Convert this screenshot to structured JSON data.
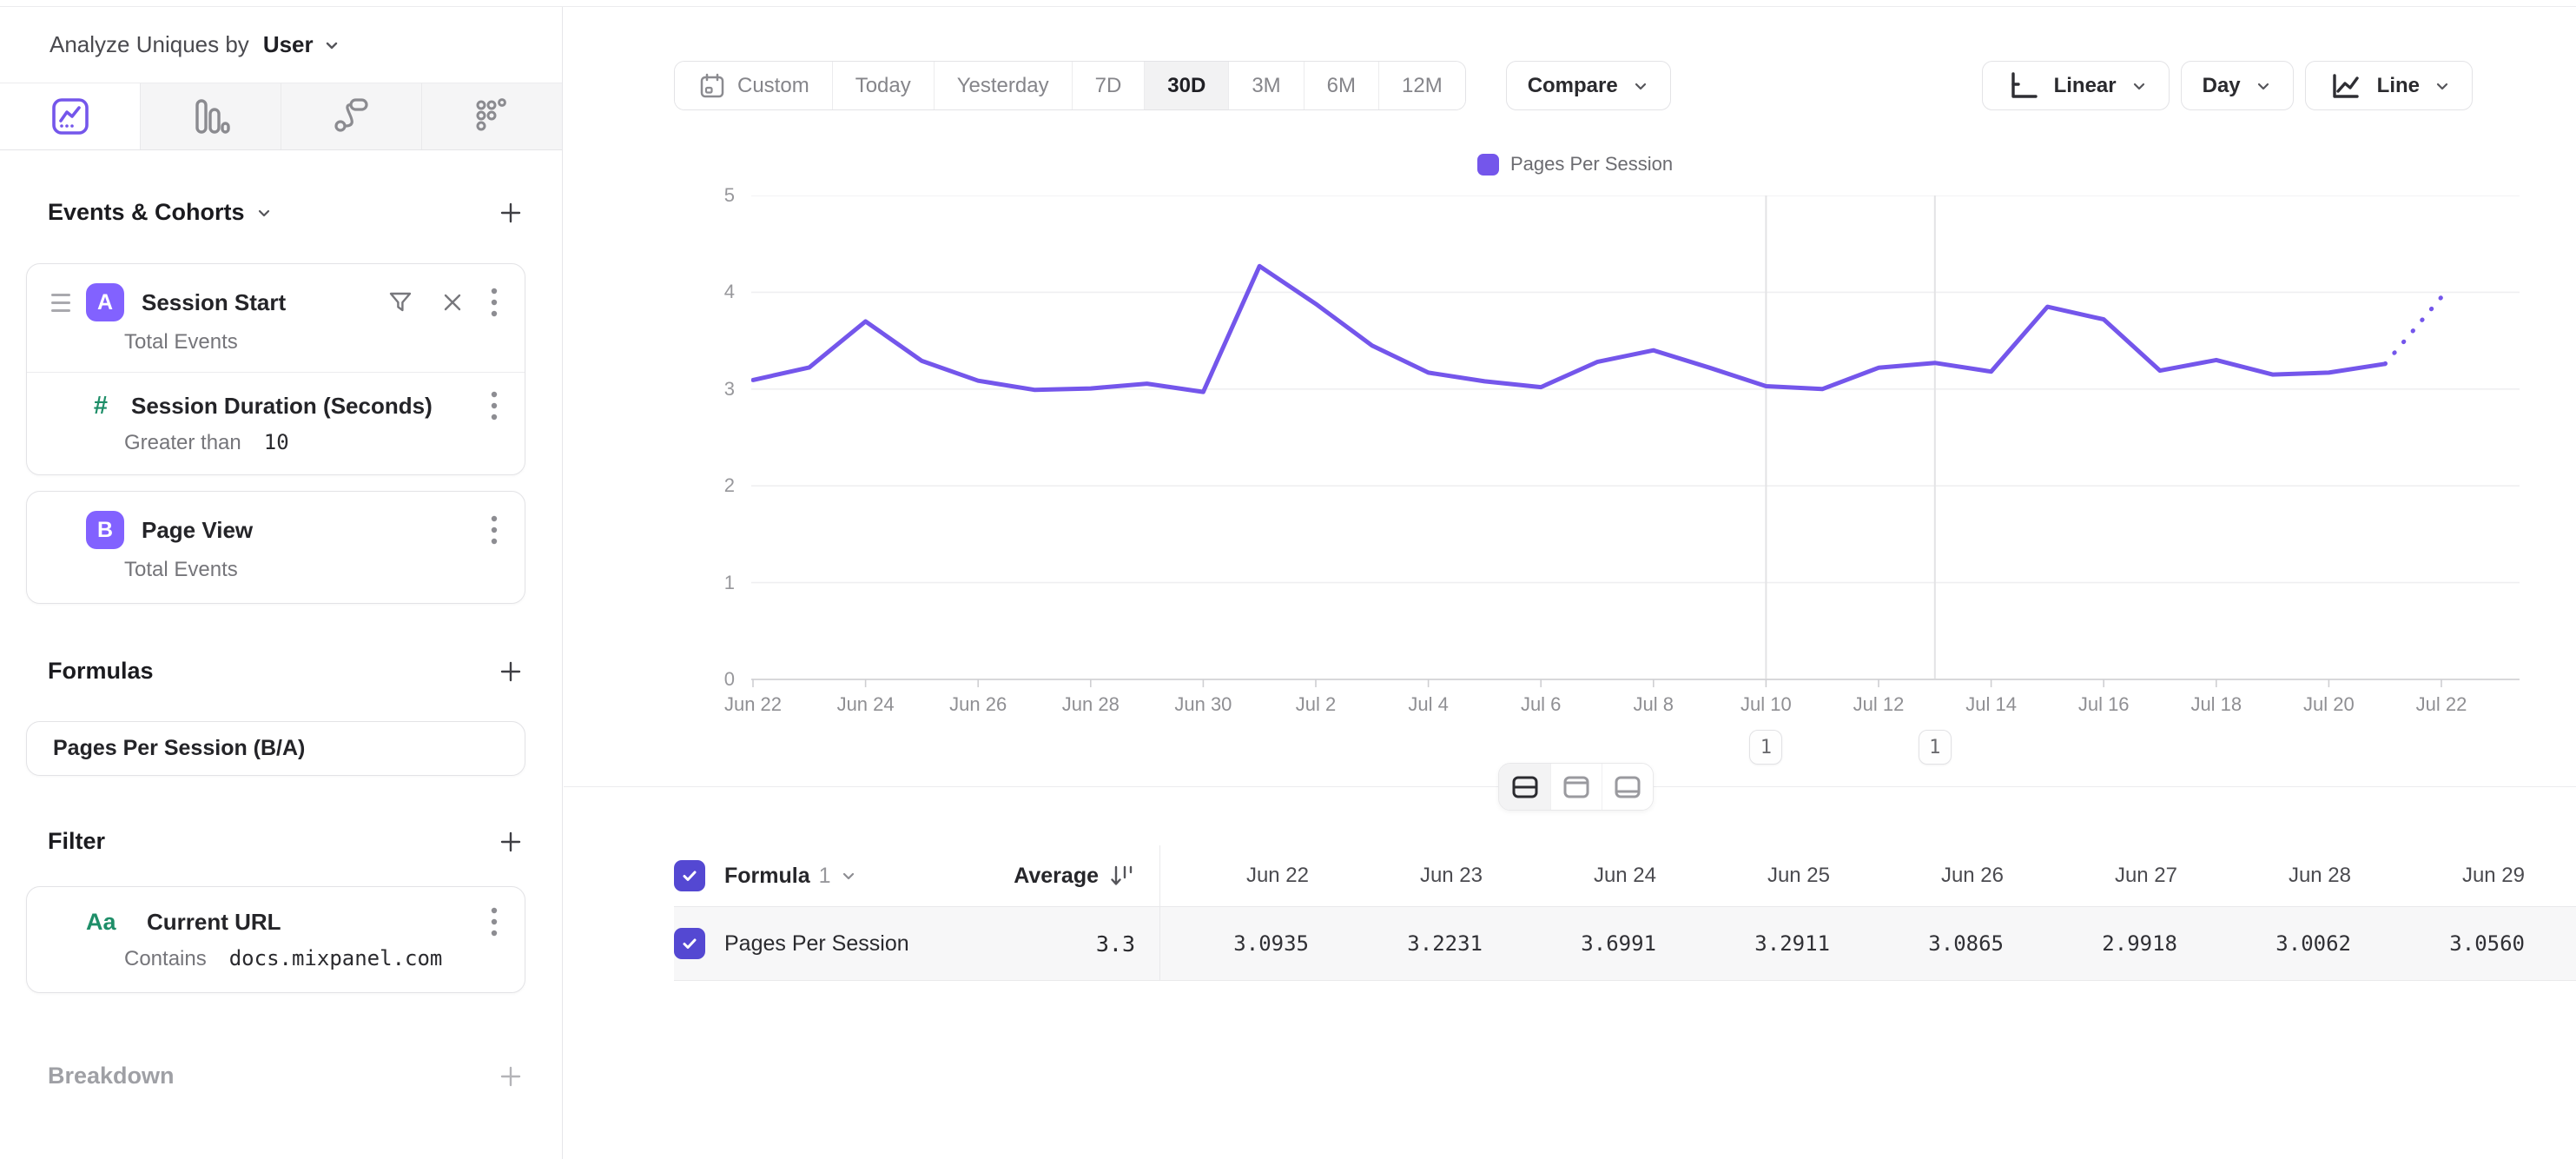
{
  "analyze_bar": {
    "prefix": "Analyze Uniques by",
    "selected": "User"
  },
  "sidebar": {
    "tabs": [
      {
        "name": "insights",
        "active": true
      },
      {
        "name": "funnels",
        "active": false
      },
      {
        "name": "flows",
        "active": false
      },
      {
        "name": "retention",
        "active": false
      }
    ],
    "events_section_title": "Events & Cohorts",
    "events": [
      {
        "letter": "A",
        "name": "Session Start",
        "metric": "Total Events",
        "inline_filter": {
          "property": "Session Duration (Seconds)",
          "operator": "Greater than",
          "value": "10"
        }
      },
      {
        "letter": "B",
        "name": "Page View",
        "metric": "Total Events"
      }
    ],
    "formulas_section_title": "Formulas",
    "formulas": [
      {
        "name": "Pages Per Session (B/A)"
      }
    ],
    "filter_section_title": "Filter",
    "filters": [
      {
        "type_icon": "Aa",
        "property": "Current URL",
        "operator": "Contains",
        "value": "docs.mixpanel.com"
      }
    ],
    "breakdown_section_title": "Breakdown"
  },
  "toolbar": {
    "ranges": [
      "Custom",
      "Today",
      "Yesterday",
      "7D",
      "30D",
      "3M",
      "6M",
      "12M"
    ],
    "active_range": "30D",
    "compare_label": "Compare",
    "scale_label": "Linear",
    "granularity_label": "Day",
    "chart_type_label": "Line"
  },
  "chart_data": {
    "type": "line",
    "legend": [
      {
        "label": "Pages Per Session",
        "color": "#7456eb"
      }
    ],
    "x": [
      "Jun 22",
      "Jun 23",
      "Jun 24",
      "Jun 25",
      "Jun 26",
      "Jun 27",
      "Jun 28",
      "Jun 29",
      "Jun 30",
      "Jul 1",
      "Jul 2",
      "Jul 3",
      "Jul 4",
      "Jul 5",
      "Jul 6",
      "Jul 7",
      "Jul 8",
      "Jul 9",
      "Jul 10",
      "Jul 11",
      "Jul 12",
      "Jul 13",
      "Jul 14",
      "Jul 15",
      "Jul 16",
      "Jul 17",
      "Jul 18",
      "Jul 19",
      "Jul 20",
      "Jul 21",
      "Jul 22"
    ],
    "series": [
      {
        "name": "Pages Per Session",
        "values": [
          3.0935,
          3.2231,
          3.6991,
          3.2911,
          3.0865,
          2.9918,
          3.0062,
          3.056,
          2.97,
          4.27,
          3.88,
          3.45,
          3.17,
          3.08,
          3.02,
          3.28,
          3.4,
          3.22,
          3.03,
          3.0,
          3.22,
          3.27,
          3.18,
          3.85,
          3.72,
          3.19,
          3.3,
          3.15,
          3.17,
          3.26,
          3.95
        ],
        "last_point_projected": true
      }
    ],
    "ylim": [
      0,
      5
    ],
    "yticks": [
      0,
      1,
      2,
      3,
      4,
      5
    ],
    "xtick_labels": [
      "Jun 22",
      "Jun 24",
      "Jun 26",
      "Jun 28",
      "Jun 30",
      "Jul 2",
      "Jul 4",
      "Jul 6",
      "Jul 8",
      "Jul 10",
      "Jul 12",
      "Jul 14",
      "Jul 16",
      "Jul 18",
      "Jul 20",
      "Jul 22"
    ],
    "annotations": [
      {
        "x": "Jul 10",
        "label": "1"
      },
      {
        "x": "Jul 13",
        "label": "1"
      }
    ],
    "grid": "horizontal",
    "legend_position": "top"
  },
  "view_toggle": {
    "options": [
      "split-view",
      "chart-only-view",
      "table-only-view"
    ],
    "active": "split-view"
  },
  "table": {
    "name_header_label": "Formula",
    "name_header_index": "1",
    "average_header": "Average",
    "columns": [
      "Jun 22",
      "Jun 23",
      "Jun 24",
      "Jun 25",
      "Jun 26",
      "Jun 27",
      "Jun 28",
      "Jun 29"
    ],
    "rows": [
      {
        "checked": true,
        "name": "Pages Per Session",
        "average": "3.3",
        "values": [
          "3.0935",
          "3.2231",
          "3.6991",
          "3.2911",
          "3.0865",
          "2.9918",
          "3.0062",
          "3.0560"
        ]
      }
    ]
  },
  "colors": {
    "accent": "#7456eb",
    "badge": "#8262ff",
    "checkbox": "#5448d2",
    "green": "#1e8e68"
  }
}
